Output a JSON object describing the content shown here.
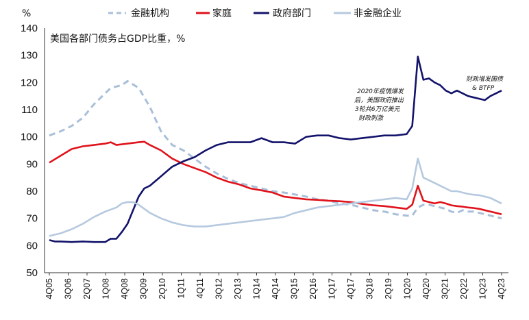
{
  "chart_data": {
    "type": "line",
    "title": "美国各部门债务占GDP比重，%",
    "unit_label": "%",
    "ylim": [
      50,
      140
    ],
    "yticks": [
      50,
      60,
      70,
      80,
      90,
      100,
      110,
      120,
      130,
      140
    ],
    "x_tick_labels": [
      "4Q05",
      "3Q06",
      "2Q07",
      "1Q08",
      "4Q08",
      "3Q09",
      "2Q10",
      "1Q11",
      "4Q11",
      "3Q12",
      "2Q13",
      "1Q14",
      "4Q14",
      "3Q15",
      "2Q16",
      "1Q17",
      "4Q17",
      "3Q18",
      "2Q19",
      "1Q20",
      "4Q20",
      "3Q21",
      "2Q22",
      "1Q23",
      "4Q23"
    ],
    "x_start": "4Q05",
    "n_quarters": 73,
    "series": [
      {
        "name": "金融机构",
        "color": "#a9bfd9",
        "style": "dashed",
        "anchors": [
          [
            0,
            100.5
          ],
          [
            2,
            102
          ],
          [
            4,
            104
          ],
          [
            6,
            107
          ],
          [
            8,
            112
          ],
          [
            10,
            116
          ],
          [
            11,
            118
          ],
          [
            13,
            119
          ],
          [
            14,
            120.5
          ],
          [
            16,
            118
          ],
          [
            18,
            111
          ],
          [
            20,
            102
          ],
          [
            22,
            97
          ],
          [
            24,
            95
          ],
          [
            26,
            92
          ],
          [
            28,
            89
          ],
          [
            30,
            86.5
          ],
          [
            32,
            84.5
          ],
          [
            34,
            83
          ],
          [
            36,
            82
          ],
          [
            38,
            81
          ],
          [
            40,
            80
          ],
          [
            42,
            79.5
          ],
          [
            44,
            78.8
          ],
          [
            46,
            78
          ],
          [
            48,
            77
          ],
          [
            50,
            76.5
          ],
          [
            52,
            75.5
          ],
          [
            54,
            75
          ],
          [
            56,
            74
          ],
          [
            58,
            73
          ],
          [
            60,
            72.5
          ],
          [
            62,
            71.5
          ],
          [
            64,
            71
          ],
          [
            65,
            71
          ],
          [
            66,
            74
          ],
          [
            67,
            75
          ],
          [
            68,
            75
          ],
          [
            69,
            74.5
          ],
          [
            70,
            74
          ],
          [
            71,
            73.5
          ],
          [
            72,
            72.5
          ],
          [
            73,
            72
          ],
          [
            74,
            73
          ],
          [
            75,
            72.5
          ],
          [
            76,
            72.5
          ],
          [
            77,
            72
          ],
          [
            78,
            71.5
          ],
          [
            79,
            71
          ],
          [
            80,
            70.5
          ],
          [
            81,
            70
          ]
        ]
      },
      {
        "name": "家庭",
        "color": "#e0121b",
        "style": "solid",
        "anchors": [
          [
            0,
            90.5
          ],
          [
            2,
            93
          ],
          [
            4,
            95.5
          ],
          [
            6,
            96.5
          ],
          [
            8,
            97
          ],
          [
            10,
            97.5
          ],
          [
            11,
            98
          ],
          [
            12,
            97
          ],
          [
            14,
            97.5
          ],
          [
            16,
            98
          ],
          [
            17,
            98.2
          ],
          [
            18,
            97
          ],
          [
            20,
            95
          ],
          [
            22,
            92
          ],
          [
            24,
            90
          ],
          [
            26,
            88.5
          ],
          [
            28,
            87
          ],
          [
            30,
            85
          ],
          [
            32,
            83.5
          ],
          [
            34,
            82.5
          ],
          [
            36,
            81
          ],
          [
            38,
            80.3
          ],
          [
            40,
            79.5
          ],
          [
            42,
            78
          ],
          [
            44,
            77.5
          ],
          [
            46,
            77
          ],
          [
            48,
            76.8
          ],
          [
            50,
            76.5
          ],
          [
            52,
            76.3
          ],
          [
            54,
            76
          ],
          [
            56,
            75.3
          ],
          [
            58,
            74.8
          ],
          [
            60,
            74.5
          ],
          [
            62,
            74
          ],
          [
            64,
            73.5
          ],
          [
            65,
            75
          ],
          [
            66,
            82
          ],
          [
            67,
            76.5
          ],
          [
            68,
            76
          ],
          [
            69,
            75.5
          ],
          [
            70,
            76
          ],
          [
            71,
            75.5
          ],
          [
            72,
            74.8
          ],
          [
            73,
            74.5
          ],
          [
            74,
            74.3
          ],
          [
            75,
            74
          ],
          [
            76,
            73.8
          ],
          [
            77,
            73.5
          ],
          [
            78,
            73
          ],
          [
            79,
            72.5
          ],
          [
            80,
            72
          ],
          [
            81,
            71.5
          ]
        ]
      },
      {
        "name": "政府部门",
        "color": "#13136b",
        "style": "solid",
        "anchors": [
          [
            0,
            62
          ],
          [
            1,
            61.5
          ],
          [
            2,
            61.5
          ],
          [
            4,
            61.3
          ],
          [
            6,
            61.5
          ],
          [
            8,
            61.3
          ],
          [
            10,
            61.3
          ],
          [
            11,
            62.5
          ],
          [
            12,
            62.5
          ],
          [
            13,
            65
          ],
          [
            14,
            68
          ],
          [
            15,
            73
          ],
          [
            16,
            78
          ],
          [
            17,
            81
          ],
          [
            18,
            82
          ],
          [
            20,
            85.5
          ],
          [
            22,
            89
          ],
          [
            24,
            91
          ],
          [
            26,
            92.5
          ],
          [
            28,
            95
          ],
          [
            30,
            97
          ],
          [
            32,
            98
          ],
          [
            34,
            98
          ],
          [
            36,
            98
          ],
          [
            38,
            99.5
          ],
          [
            40,
            98
          ],
          [
            42,
            98
          ],
          [
            44,
            97.5
          ],
          [
            46,
            100
          ],
          [
            48,
            100.5
          ],
          [
            50,
            100.5
          ],
          [
            52,
            99.5
          ],
          [
            54,
            99
          ],
          [
            56,
            99.5
          ],
          [
            58,
            100
          ],
          [
            60,
            100.5
          ],
          [
            62,
            100.5
          ],
          [
            64,
            101
          ],
          [
            65,
            104
          ],
          [
            66,
            129.5
          ],
          [
            67,
            121
          ],
          [
            68,
            121.5
          ],
          [
            69,
            120
          ],
          [
            70,
            119
          ],
          [
            71,
            117
          ],
          [
            72,
            116
          ],
          [
            73,
            117
          ],
          [
            74,
            116
          ],
          [
            75,
            115
          ],
          [
            76,
            114.5
          ],
          [
            77,
            114
          ],
          [
            78,
            113.5
          ],
          [
            79,
            115
          ],
          [
            80,
            116
          ],
          [
            81,
            117
          ]
        ]
      },
      {
        "name": "非金融企业",
        "color": "#b6c9df",
        "style": "solid",
        "anchors": [
          [
            0,
            63.5
          ],
          [
            2,
            64.5
          ],
          [
            4,
            66
          ],
          [
            6,
            68
          ],
          [
            8,
            70.5
          ],
          [
            10,
            72.5
          ],
          [
            12,
            74
          ],
          [
            13,
            75.5
          ],
          [
            14,
            76
          ],
          [
            15,
            76
          ],
          [
            16,
            75
          ],
          [
            18,
            72
          ],
          [
            20,
            70
          ],
          [
            22,
            68.5
          ],
          [
            24,
            67.5
          ],
          [
            26,
            67
          ],
          [
            28,
            67
          ],
          [
            30,
            67.5
          ],
          [
            32,
            68
          ],
          [
            34,
            68.5
          ],
          [
            36,
            69
          ],
          [
            38,
            69.5
          ],
          [
            40,
            70
          ],
          [
            42,
            70.5
          ],
          [
            44,
            72
          ],
          [
            46,
            73
          ],
          [
            48,
            74
          ],
          [
            50,
            74.5
          ],
          [
            52,
            75
          ],
          [
            54,
            75.5
          ],
          [
            56,
            76
          ],
          [
            58,
            76.5
          ],
          [
            60,
            77
          ],
          [
            62,
            77.5
          ],
          [
            64,
            77
          ],
          [
            65,
            81
          ],
          [
            66,
            92
          ],
          [
            67,
            85
          ],
          [
            68,
            84
          ],
          [
            69,
            83
          ],
          [
            70,
            82
          ],
          [
            71,
            81
          ],
          [
            72,
            80
          ],
          [
            73,
            80
          ],
          [
            74,
            79.5
          ],
          [
            75,
            79
          ],
          [
            76,
            78.7
          ],
          [
            77,
            78.5
          ],
          [
            78,
            78
          ],
          [
            79,
            77.5
          ],
          [
            80,
            76.5
          ],
          [
            81,
            75.5
          ]
        ]
      }
    ],
    "annotations": [
      {
        "lines": [
          "2020年疫情爆发",
          "后，美国政府推出",
          "3轮共6万亿美元",
          "财政刺激"
        ]
      },
      {
        "lines": [
          "财政增发国债",
          "& BTFP"
        ]
      }
    ]
  }
}
